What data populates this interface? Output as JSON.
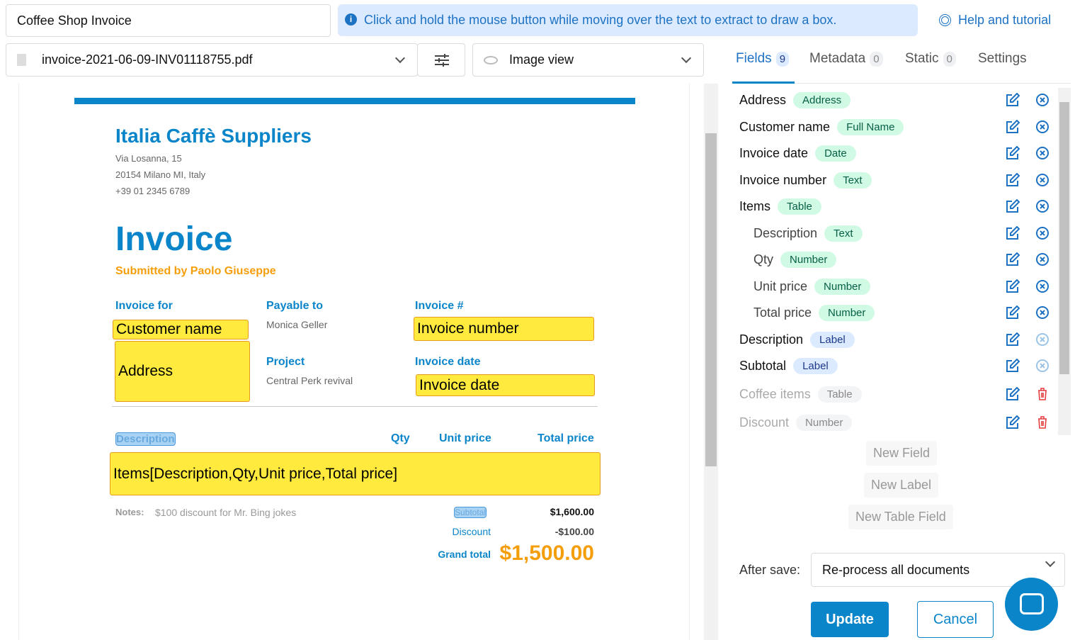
{
  "header": {
    "title": "Coffee Shop Invoice",
    "info": "Click and hold the mouse button while moving over the text to extract to draw a box.",
    "help": "Help and tutorial"
  },
  "toolbar": {
    "file": "invoice-2021-06-09-INV01118755.pdf",
    "view": "Image view"
  },
  "document": {
    "company": "Italia Caffè Suppliers",
    "address1": "Via Losanna, 15",
    "address2": "20154 Milano MI, Italy",
    "phone": "+39 01 2345 6789",
    "heading": "Invoice",
    "submitted": "Submitted by Paolo Giuseppe",
    "invoice_for": "Invoice for",
    "payable_to": "Payable to",
    "payable_value": "Monica Geller",
    "invoice_no": "Invoice #",
    "project": "Project",
    "project_value": "Central Perk revival",
    "invoice_date": "Invoice date",
    "col_desc": "Description",
    "col_qty": "Qty",
    "col_unit": "Unit price",
    "col_total": "Total price",
    "notes_label": "Notes:",
    "notes": "$100 discount for Mr. Bing jokes",
    "subtotal_label": "Subtotal",
    "subtotal": "$1,600.00",
    "discount_label": "Discount",
    "discount": "-$100.00",
    "grand_label": "Grand total",
    "grand": "$1,500.00",
    "boxes": {
      "customer": "Customer name",
      "address": "Address",
      "invoice_number": "Invoice number",
      "invoice_date": "Invoice date",
      "items": "Items[Description,Qty,Unit price,Total price]"
    },
    "colors": {
      "accent": "#0b85c9",
      "highlight": "#ffea3d",
      "orange": "#f59e0b"
    }
  },
  "tabs": [
    {
      "label": "Fields",
      "count": "9"
    },
    {
      "label": "Metadata",
      "count": "0"
    },
    {
      "label": "Static",
      "count": "0"
    },
    {
      "label": "Settings"
    }
  ],
  "fields": [
    {
      "name": "Address",
      "type": "Address"
    },
    {
      "name": "Customer name",
      "type": "Full Name"
    },
    {
      "name": "Invoice date",
      "type": "Date"
    },
    {
      "name": "Invoice number",
      "type": "Text"
    },
    {
      "name": "Items",
      "type": "Table"
    },
    {
      "name": "Description",
      "type": "Text"
    },
    {
      "name": "Qty",
      "type": "Number"
    },
    {
      "name": "Unit price",
      "type": "Number"
    },
    {
      "name": "Total price",
      "type": "Number"
    },
    {
      "name": "Description",
      "type": "Label"
    },
    {
      "name": "Subtotal",
      "type": "Label"
    },
    {
      "name": "Coffee items",
      "type": "Table"
    },
    {
      "name": "Discount",
      "type": "Number"
    }
  ],
  "actions": {
    "new_field": "New Field",
    "new_label": "New Label",
    "new_table_field": "New Table Field",
    "after_save_label": "After save:",
    "after_save_value": "Re-process all documents",
    "update": "Update",
    "cancel": "Cancel"
  }
}
